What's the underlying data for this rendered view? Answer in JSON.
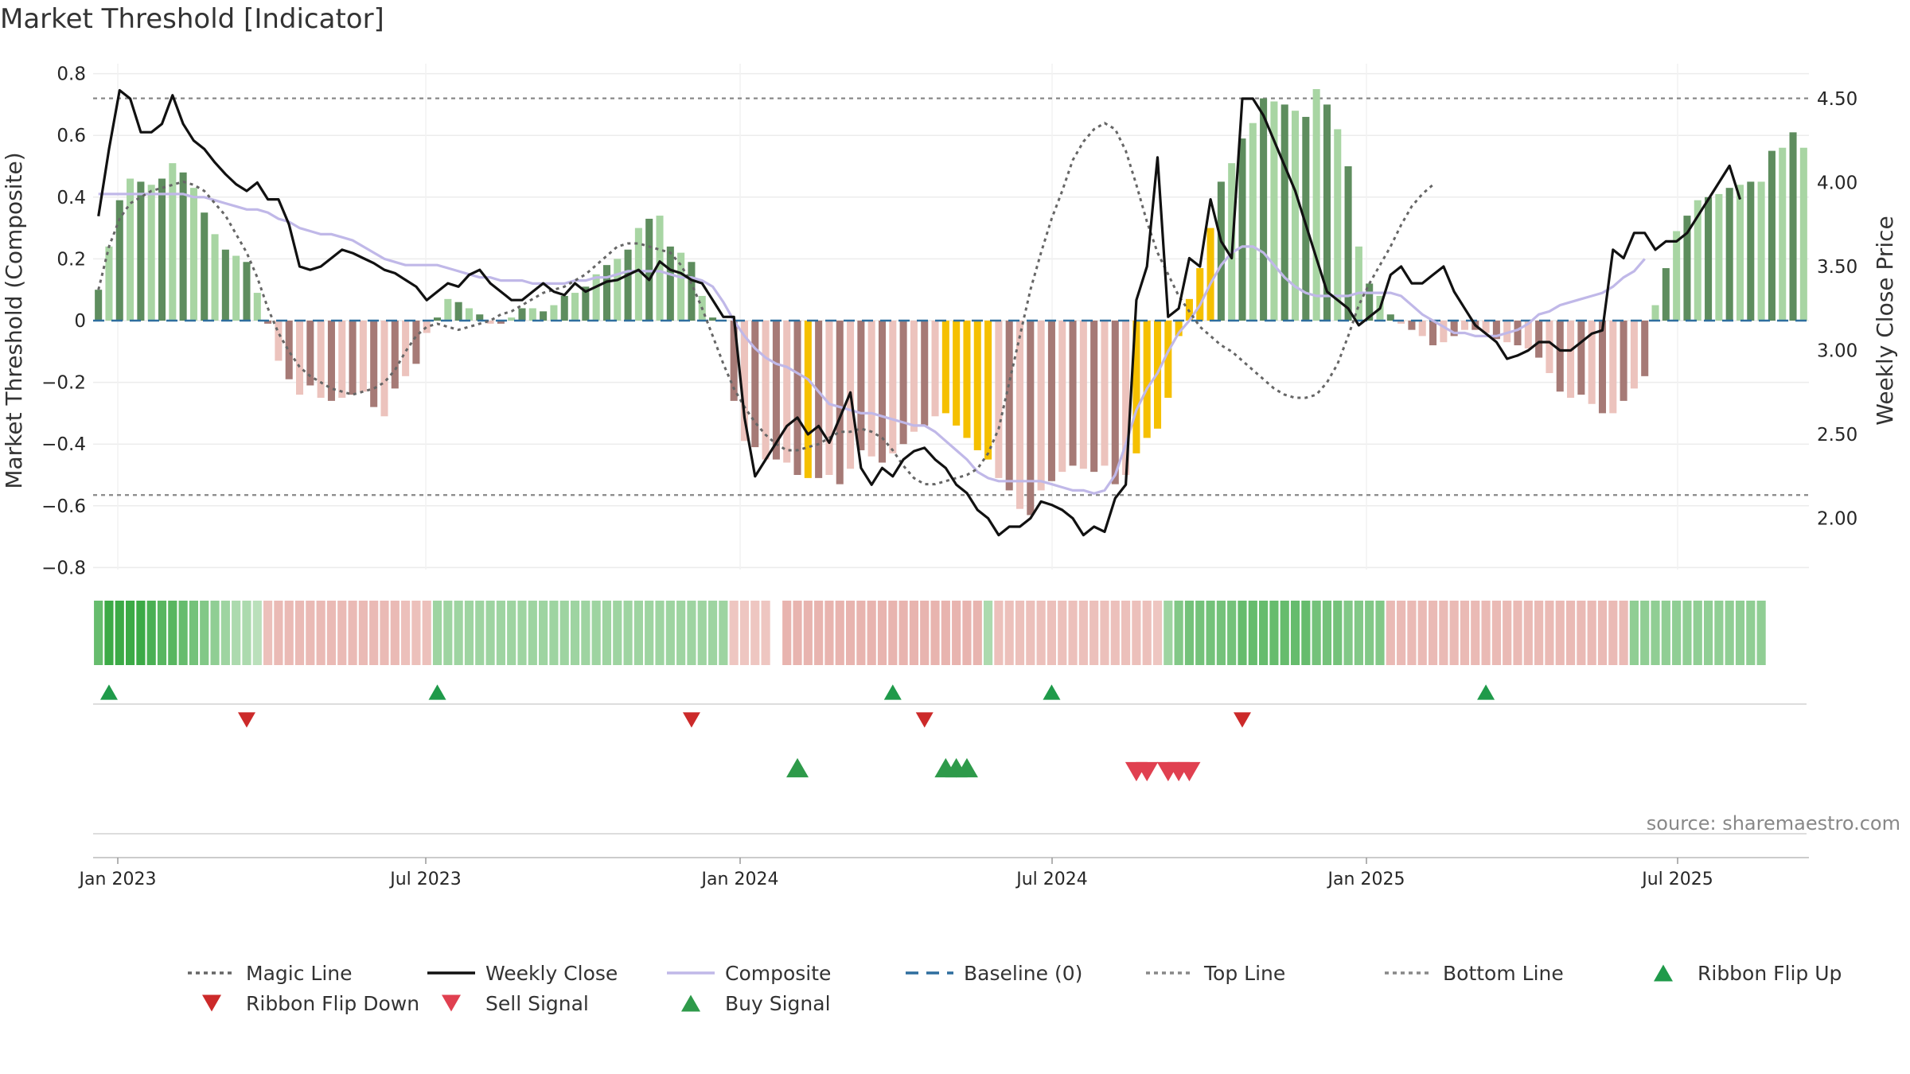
{
  "title": "Market Threshold [Indicator]",
  "source": "source: sharemaestro.com",
  "colors": {
    "bar_up_dark": "#5e8d5e",
    "bar_up_light": "#a8d5a3",
    "bar_down_dark": "#a67a76",
    "bar_down_light": "#ecc3bd",
    "bar_extreme": "#f5c000",
    "weekly_close": "#111111",
    "composite": "#c0b8e8",
    "magic_line": "#666666",
    "baseline": "#2e6e9e",
    "threshold": "#888888",
    "ribbon_flip_up": "#1f9a4a",
    "ribbon_flip_down": "#cc2a2a",
    "sell_signal": "#e04050",
    "buy_signal": "#2e9a4a"
  },
  "chart_data": {
    "type": "bar",
    "x_tick_labels": [
      "Jan 2023",
      "Jul 2023",
      "Jan 2024",
      "Jul 2024",
      "Jan 2025",
      "Jul 2025"
    ],
    "y_left": {
      "label": "Market Threshold (Composite)",
      "ticks": [
        0.8,
        0.6,
        0.4,
        0.2,
        0,
        -0.2,
        -0.4,
        -0.6,
        -0.8
      ],
      "tick_labels": [
        "0.8",
        "0.6",
        "0.4",
        "0.2",
        "0",
        "−0.2",
        "−0.4",
        "−0.6",
        "−0.8"
      ],
      "range": [
        -0.83,
        0.83
      ]
    },
    "y_right": {
      "label": "Weekly Close Price",
      "ticks": [
        4.5,
        4.0,
        3.5,
        3.0,
        2.5,
        2.0
      ],
      "tick_labels": [
        "4.50",
        "4.00",
        "3.50",
        "3.00",
        "2.50",
        "2.00"
      ]
    },
    "top_line": 0.72,
    "bottom_line": -0.565,
    "baseline": 0,
    "weeks": 145,
    "bar_values": [
      0.1,
      0.24,
      0.39,
      0.46,
      0.45,
      0.44,
      0.46,
      0.51,
      0.48,
      0.43,
      0.35,
      0.28,
      0.23,
      0.21,
      0.19,
      0.09,
      -0.01,
      -0.13,
      -0.19,
      -0.24,
      -0.21,
      -0.25,
      -0.26,
      -0.25,
      -0.24,
      -0.23,
      -0.28,
      -0.31,
      -0.22,
      -0.18,
      -0.14,
      -0.04,
      0.01,
      0.07,
      0.06,
      0.04,
      0.02,
      -0.01,
      -0.01,
      0.01,
      0.04,
      0.04,
      0.03,
      0.05,
      0.08,
      0.09,
      0.11,
      0.15,
      0.18,
      0.2,
      0.23,
      0.3,
      0.33,
      0.34,
      0.24,
      0.22,
      0.19,
      0.08,
      0.01,
      0.0,
      -0.26,
      -0.39,
      -0.41,
      -0.45,
      -0.45,
      -0.46,
      -0.5,
      -0.51,
      -0.51,
      -0.5,
      -0.53,
      -0.48,
      -0.42,
      -0.44,
      -0.46,
      -0.43,
      -0.4,
      -0.36,
      -0.34,
      -0.31,
      -0.3,
      -0.34,
      -0.38,
      -0.42,
      -0.45,
      -0.51,
      -0.55,
      -0.61,
      -0.63,
      -0.55,
      -0.52,
      -0.49,
      -0.47,
      -0.48,
      -0.49,
      -0.47,
      -0.53,
      -0.5,
      -0.43,
      -0.38,
      -0.35,
      -0.25,
      -0.05,
      0.07,
      0.17,
      0.3,
      0.45,
      0.51,
      0.59,
      0.64,
      0.72,
      0.71,
      0.7,
      0.68,
      0.66,
      0.75,
      0.7,
      0.62,
      0.5,
      0.24,
      0.12,
      0.08,
      0.02,
      -0.01,
      -0.03,
      -0.05,
      -0.08,
      -0.07,
      -0.05,
      -0.03,
      -0.03,
      -0.04,
      -0.06,
      -0.07,
      -0.08,
      -0.09,
      -0.12,
      -0.17,
      -0.23,
      -0.25,
      -0.24,
      -0.27,
      -0.3,
      -0.3,
      -0.26,
      -0.22,
      -0.18
    ],
    "bar_values_end": [
      0.05,
      0.17,
      0.29,
      0.34,
      0.39,
      0.4,
      0.41,
      0.43,
      0.44,
      0.45,
      0.45,
      0.55,
      0.56,
      0.61,
      0.56
    ],
    "bar_extreme_weeks": [
      67,
      80,
      81,
      82,
      83,
      84,
      98,
      99,
      100,
      101,
      102,
      103,
      104,
      105
    ],
    "weekly_close": [
      3.8,
      4.2,
      4.55,
      4.5,
      4.3,
      4.3,
      4.35,
      4.52,
      4.35,
      4.25,
      4.2,
      4.12,
      4.05,
      3.99,
      3.95,
      4.0,
      3.9,
      3.9,
      3.75,
      3.5,
      3.48,
      3.5,
      3.55,
      3.6,
      3.58,
      3.55,
      3.52,
      3.48,
      3.46,
      3.42,
      3.38,
      3.3,
      3.35,
      3.4,
      3.38,
      3.45,
      3.48,
      3.4,
      3.35,
      3.3,
      3.3,
      3.35,
      3.4,
      3.35,
      3.33,
      3.4,
      3.35,
      3.38,
      3.41,
      3.42,
      3.45,
      3.48,
      3.42,
      3.53,
      3.48,
      3.46,
      3.42,
      3.4,
      3.3,
      3.2,
      3.2,
      2.6,
      2.25,
      2.35,
      2.45,
      2.55,
      2.6,
      2.5,
      2.55,
      2.45,
      2.6,
      2.75,
      2.3,
      2.2,
      2.3,
      2.25,
      2.35,
      2.4,
      2.42,
      2.35,
      2.3,
      2.2,
      2.15,
      2.05,
      2.0,
      1.9,
      1.95,
      1.95,
      2.0,
      2.1,
      2.08,
      2.05,
      2.0,
      1.9,
      1.95,
      1.92,
      2.12,
      2.2,
      3.3,
      3.5,
      4.15,
      3.2,
      3.25,
      3.55,
      3.5,
      3.9,
      3.65,
      3.55,
      4.5,
      4.5,
      4.4,
      4.25,
      4.1,
      3.95,
      3.75,
      3.55,
      3.35,
      3.3,
      3.25,
      3.15,
      3.2,
      3.25,
      3.45,
      3.5,
      3.4,
      3.4,
      3.45,
      3.5,
      3.35,
      3.25,
      3.15,
      3.1,
      3.05,
      2.95,
      2.97,
      3.0,
      3.05,
      3.05,
      3.0,
      3.0,
      3.05,
      3.1,
      3.12
    ],
    "weekly_close_end": [
      3.6,
      3.55,
      3.7,
      3.7,
      3.6,
      3.65,
      3.65,
      3.7,
      3.8,
      3.9,
      4.0,
      4.1,
      3.9
    ],
    "composite": [
      0.41,
      0.41,
      0.41,
      0.41,
      0.41,
      0.41,
      0.41,
      0.41,
      0.41,
      0.4,
      0.4,
      0.39,
      0.38,
      0.37,
      0.36,
      0.36,
      0.35,
      0.33,
      0.32,
      0.3,
      0.29,
      0.28,
      0.28,
      0.27,
      0.26,
      0.24,
      0.22,
      0.2,
      0.19,
      0.18,
      0.18,
      0.18,
      0.18,
      0.17,
      0.16,
      0.15,
      0.14,
      0.14,
      0.13,
      0.13,
      0.13,
      0.12,
      0.12,
      0.12,
      0.12,
      0.13,
      0.13,
      0.14,
      0.14,
      0.15,
      0.16,
      0.16,
      0.16,
      0.16,
      0.15,
      0.14,
      0.14,
      0.13,
      0.11,
      0.06,
      0.0,
      -0.05,
      -0.09,
      -0.12,
      -0.14,
      -0.15,
      -0.17,
      -0.19,
      -0.23,
      -0.27,
      -0.28,
      -0.29,
      -0.3,
      -0.3,
      -0.31,
      -0.32,
      -0.33,
      -0.34,
      -0.34,
      -0.36,
      -0.39,
      -0.42,
      -0.45,
      -0.49,
      -0.51,
      -0.52,
      -0.52,
      -0.52,
      -0.52,
      -0.52,
      -0.53,
      -0.54,
      -0.55,
      -0.55,
      -0.56,
      -0.55,
      -0.5,
      -0.4,
      -0.29,
      -0.22,
      -0.17,
      -0.1,
      -0.04,
      0.0,
      0.05,
      0.12,
      0.18,
      0.22,
      0.24,
      0.24,
      0.22,
      0.18,
      0.14,
      0.11,
      0.09,
      0.08,
      0.08,
      0.08,
      0.08,
      0.09,
      0.09,
      0.09,
      0.09,
      0.08,
      0.05,
      0.02,
      0.0,
      -0.02,
      -0.04,
      -0.04,
      -0.05,
      -0.05,
      -0.05,
      -0.04,
      -0.03,
      -0.01,
      0.02,
      0.03,
      0.05,
      0.06,
      0.07,
      0.08,
      0.09,
      0.11,
      0.14,
      0.16,
      0.2
    ],
    "magic_line": [
      0.1,
      0.24,
      0.33,
      0.38,
      0.4,
      0.42,
      0.43,
      0.44,
      0.45,
      0.44,
      0.42,
      0.38,
      0.34,
      0.28,
      0.22,
      0.14,
      0.04,
      -0.04,
      -0.1,
      -0.15,
      -0.18,
      -0.2,
      -0.22,
      -0.23,
      -0.24,
      -0.23,
      -0.22,
      -0.2,
      -0.16,
      -0.1,
      -0.05,
      -0.02,
      -0.01,
      -0.02,
      -0.03,
      -0.02,
      -0.01,
      0.0,
      0.02,
      0.03,
      0.05,
      0.07,
      0.09,
      0.1,
      0.11,
      0.13,
      0.15,
      0.18,
      0.21,
      0.24,
      0.25,
      0.25,
      0.24,
      0.23,
      0.22,
      0.18,
      0.12,
      0.04,
      -0.05,
      -0.14,
      -0.22,
      -0.28,
      -0.33,
      -0.37,
      -0.4,
      -0.42,
      -0.42,
      -0.41,
      -0.4,
      -0.38,
      -0.36,
      -0.36,
      -0.35,
      -0.36,
      -0.38,
      -0.42,
      -0.47,
      -0.51,
      -0.53,
      -0.53,
      -0.52,
      -0.51,
      -0.5,
      -0.48,
      -0.43,
      -0.35,
      -0.2,
      -0.05,
      0.1,
      0.22,
      0.33,
      0.42,
      0.52,
      0.58,
      0.62,
      0.64,
      0.62,
      0.55,
      0.44,
      0.32,
      0.22,
      0.15,
      0.08,
      0.03,
      -0.02,
      -0.05,
      -0.08,
      -0.1,
      -0.13,
      -0.16,
      -0.19,
      -0.22,
      -0.24,
      -0.25,
      -0.25,
      -0.24,
      -0.2,
      -0.14,
      -0.05,
      0.05,
      0.12,
      0.18,
      0.24,
      0.31,
      0.37,
      0.41,
      0.44
    ],
    "ribbon": [
      0.7,
      1,
      1,
      1,
      1,
      0.9,
      0.8,
      0.8,
      0.7,
      0.6,
      0.5,
      0.4,
      0.3,
      0.2,
      0.2,
      0.1,
      -0.3,
      -0.4,
      -0.4,
      -0.4,
      -0.4,
      -0.4,
      -0.4,
      -0.4,
      -0.4,
      -0.4,
      -0.4,
      -0.4,
      -0.4,
      -0.3,
      -0.3,
      -0.3,
      0.3,
      0.3,
      0.3,
      0.3,
      0.3,
      0.3,
      0.3,
      0.3,
      0.3,
      0.3,
      0.3,
      0.3,
      0.3,
      0.3,
      0.3,
      0.3,
      0.3,
      0.3,
      0.3,
      0.3,
      0.3,
      0.3,
      0.3,
      0.3,
      0.3,
      0.3,
      0.3,
      0.3,
      -0.2,
      -0.2,
      -0.2,
      -0.2,
      null,
      -0.5,
      -0.5,
      -0.5,
      -0.5,
      -0.5,
      -0.5,
      -0.5,
      -0.5,
      -0.5,
      -0.5,
      -0.5,
      -0.5,
      -0.5,
      -0.5,
      -0.5,
      -0.5,
      -0.5,
      -0.5,
      -0.5,
      0.2,
      -0.3,
      -0.3,
      -0.3,
      -0.3,
      -0.3,
      -0.3,
      -0.3,
      -0.3,
      -0.3,
      -0.3,
      -0.3,
      -0.3,
      -0.3,
      -0.3,
      -0.3,
      -0.2,
      0.3,
      0.5,
      0.6,
      0.6,
      0.6,
      0.6,
      0.6,
      0.7,
      0.7,
      0.7,
      0.7,
      0.7,
      0.7,
      0.7,
      0.6,
      0.6,
      0.6,
      0.5,
      0.5,
      0.5,
      0.5,
      -0.4,
      -0.4,
      -0.4,
      -0.4,
      -0.4,
      -0.4,
      -0.4,
      -0.4,
      -0.4,
      -0.4,
      -0.4,
      -0.4,
      -0.4,
      -0.4,
      -0.4,
      -0.4,
      -0.4,
      -0.4,
      -0.4,
      -0.4,
      -0.4,
      -0.4,
      -0.4,
      0.4,
      0.4,
      0.4,
      0.4,
      0.4,
      0.4,
      0.4,
      0.4,
      0.4,
      0.4,
      0.4,
      0.4,
      0.4
    ],
    "ribbon_flip_up_weeks": [
      1,
      32,
      75,
      90,
      131
    ],
    "ribbon_flip_down_weeks": [
      14,
      56,
      78,
      108
    ],
    "buy_signal_weeks": [
      66,
      80,
      81,
      82
    ],
    "sell_signal_weeks": [
      98,
      99,
      101,
      102,
      103
    ]
  },
  "legend": [
    {
      "label": "Magic Line",
      "style": "dotted-line",
      "color": "#666666"
    },
    {
      "label": "Weekly Close",
      "style": "solid-line",
      "color": "#111111"
    },
    {
      "label": "Composite",
      "style": "solid-line",
      "color": "#c0b8e8"
    },
    {
      "label": "Baseline (0)",
      "style": "dashed-line",
      "color": "#2e6e9e"
    },
    {
      "label": "Top Line",
      "style": "dotted-line",
      "color": "#888888"
    },
    {
      "label": "Bottom Line",
      "style": "dotted-line",
      "color": "#888888"
    },
    {
      "label": "Ribbon Flip Up",
      "style": "triangle-up",
      "color": "#1f9a4a"
    },
    {
      "label": "Ribbon Flip Down",
      "style": "triangle-down",
      "color": "#cc2a2a"
    },
    {
      "label": "Sell Signal",
      "style": "triangle-down",
      "color": "#e04050"
    },
    {
      "label": "Buy Signal",
      "style": "triangle-up",
      "color": "#2e9a4a"
    }
  ]
}
